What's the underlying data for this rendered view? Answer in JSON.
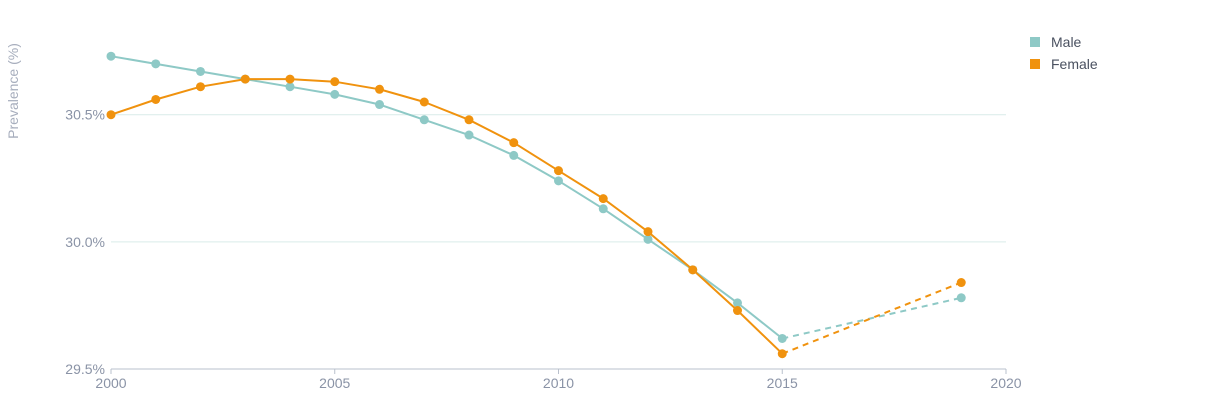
{
  "chart_data": {
    "type": "line",
    "ylabel": "Prevalence (%)",
    "xlim": [
      2000,
      2020
    ],
    "ylim": [
      29.5,
      30.9
    ],
    "x_ticks": [
      2000,
      2005,
      2010,
      2015,
      2020
    ],
    "y_ticks": [
      29.5,
      30.0,
      30.5
    ],
    "y_tick_labels": [
      "29.5%",
      "30.0%",
      "30.5%"
    ],
    "grid": "horizontal",
    "legend_position": "top-right",
    "series": [
      {
        "name": "Male",
        "color": "#8ec9c6",
        "points": [
          [
            2000,
            30.73
          ],
          [
            2001,
            30.7
          ],
          [
            2002,
            30.67
          ],
          [
            2003,
            30.64
          ],
          [
            2004,
            30.61
          ],
          [
            2005,
            30.58
          ],
          [
            2006,
            30.54
          ],
          [
            2007,
            30.48
          ],
          [
            2008,
            30.42
          ],
          [
            2009,
            30.34
          ],
          [
            2010,
            30.24
          ],
          [
            2011,
            30.13
          ],
          [
            2012,
            30.01
          ],
          [
            2013,
            29.89
          ],
          [
            2014,
            29.76
          ],
          [
            2015,
            29.62
          ],
          [
            2019,
            29.78
          ]
        ],
        "dashed_from": 2015
      },
      {
        "name": "Female",
        "color": "#f0920e",
        "points": [
          [
            2000,
            30.5
          ],
          [
            2001,
            30.56
          ],
          [
            2002,
            30.61
          ],
          [
            2003,
            30.64
          ],
          [
            2004,
            30.64
          ],
          [
            2005,
            30.63
          ],
          [
            2006,
            30.6
          ],
          [
            2007,
            30.55
          ],
          [
            2008,
            30.48
          ],
          [
            2009,
            30.39
          ],
          [
            2010,
            30.28
          ],
          [
            2011,
            30.17
          ],
          [
            2012,
            30.04
          ],
          [
            2013,
            29.89
          ],
          [
            2014,
            29.73
          ],
          [
            2015,
            29.56
          ],
          [
            2019,
            29.84
          ]
        ],
        "dashed_from": 2015
      }
    ]
  }
}
